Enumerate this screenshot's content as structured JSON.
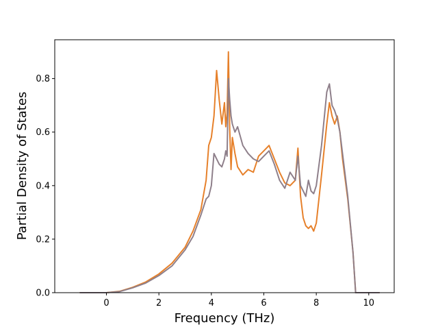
{
  "chart_data": {
    "type": "line",
    "title": "",
    "xlabel": "Frequency (THz)",
    "ylabel": "Partial Density of States",
    "xlim": [
      -1.97,
      10.97
    ],
    "ylim": [
      0.0,
      0.945
    ],
    "xticks": [
      0,
      2,
      4,
      6,
      8,
      10
    ],
    "yticks": [
      0.0,
      0.2,
      0.4,
      0.6,
      0.8
    ],
    "xtick_labels": [
      "0",
      "2",
      "4",
      "6",
      "8",
      "10"
    ],
    "ytick_labels": [
      "0.0",
      "0.2",
      "0.4",
      "0.6",
      "0.8"
    ],
    "grid": false,
    "legend": "none",
    "series": [
      {
        "color": "#e6802a",
        "x": [
          -1.0,
          0.0,
          0.5,
          1.0,
          1.5,
          2.0,
          2.5,
          3.0,
          3.3,
          3.6,
          3.8,
          3.9,
          4.0,
          4.1,
          4.2,
          4.3,
          4.4,
          4.5,
          4.55,
          4.6,
          4.65,
          4.7,
          4.75,
          4.8,
          4.9,
          5.0,
          5.2,
          5.4,
          5.6,
          5.8,
          6.0,
          6.2,
          6.4,
          6.6,
          6.8,
          7.0,
          7.2,
          7.3,
          7.4,
          7.5,
          7.6,
          7.7,
          7.8,
          7.9,
          8.0,
          8.2,
          8.4,
          8.5,
          8.6,
          8.7,
          8.8,
          8.9,
          9.0,
          9.2,
          9.4,
          9.5,
          10.4
        ],
        "y": [
          0.0,
          0.0,
          0.005,
          0.02,
          0.04,
          0.07,
          0.11,
          0.17,
          0.23,
          0.31,
          0.42,
          0.55,
          0.58,
          0.66,
          0.83,
          0.72,
          0.63,
          0.71,
          0.62,
          0.67,
          0.9,
          0.61,
          0.46,
          0.58,
          0.52,
          0.47,
          0.44,
          0.46,
          0.45,
          0.51,
          0.53,
          0.55,
          0.5,
          0.45,
          0.41,
          0.4,
          0.42,
          0.54,
          0.36,
          0.28,
          0.25,
          0.24,
          0.25,
          0.23,
          0.26,
          0.44,
          0.63,
          0.71,
          0.66,
          0.63,
          0.66,
          0.6,
          0.5,
          0.35,
          0.15,
          0.0,
          0.0
        ]
      },
      {
        "color": "#8e7f8a",
        "x": [
          -1.0,
          0.0,
          0.5,
          1.0,
          1.5,
          2.0,
          2.5,
          3.0,
          3.3,
          3.6,
          3.8,
          3.9,
          4.0,
          4.1,
          4.2,
          4.3,
          4.4,
          4.5,
          4.55,
          4.6,
          4.65,
          4.7,
          4.75,
          4.8,
          4.9,
          5.0,
          5.2,
          5.4,
          5.6,
          5.8,
          6.0,
          6.2,
          6.4,
          6.6,
          6.8,
          7.0,
          7.2,
          7.3,
          7.4,
          7.5,
          7.6,
          7.7,
          7.8,
          7.9,
          8.0,
          8.2,
          8.4,
          8.5,
          8.6,
          8.7,
          8.8,
          8.9,
          9.0,
          9.2,
          9.4,
          9.5,
          10.4
        ],
        "y": [
          0.0,
          0.0,
          0.004,
          0.018,
          0.036,
          0.064,
          0.1,
          0.16,
          0.21,
          0.29,
          0.35,
          0.36,
          0.4,
          0.52,
          0.5,
          0.48,
          0.47,
          0.5,
          0.53,
          0.51,
          0.8,
          0.72,
          0.66,
          0.63,
          0.6,
          0.62,
          0.55,
          0.52,
          0.5,
          0.49,
          0.51,
          0.53,
          0.48,
          0.42,
          0.39,
          0.45,
          0.42,
          0.51,
          0.4,
          0.38,
          0.36,
          0.42,
          0.38,
          0.37,
          0.4,
          0.55,
          0.75,
          0.78,
          0.7,
          0.68,
          0.65,
          0.6,
          0.52,
          0.36,
          0.15,
          0.0,
          0.0
        ]
      }
    ]
  }
}
